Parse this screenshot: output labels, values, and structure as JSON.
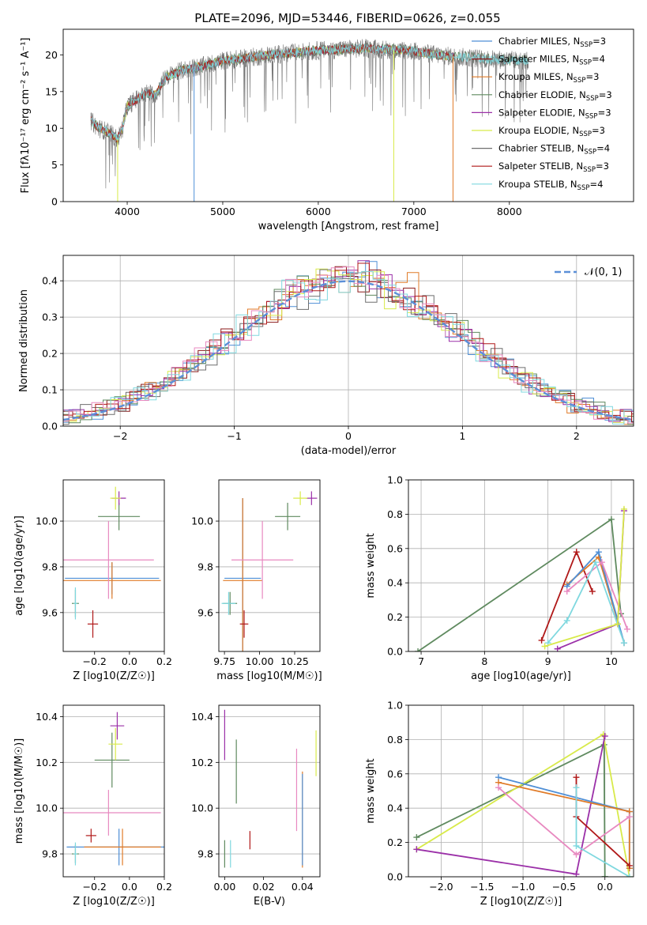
{
  "figure_title": "PLATE=2096, MJD=53446, FIBERID=0626, z=0.055",
  "colors": {
    "Chabrier MILES": "#4f8fd6",
    "Salpeter MILES": "#8b1a1a",
    "Kroupa MILES": "#e07b28",
    "Chabrier ELODIE": "#5f8a5f",
    "Salpeter ELODIE": "#9b30a8",
    "Kroupa ELODIE": "#d8ea4a",
    "Chabrier STELIB": "#6f6f6f",
    "Salpeter STELIB": "#b01818",
    "Kroupa STELIB": "#7fd8df",
    "pink": "#e889c0",
    "gauss": "#5b8fd8"
  },
  "chart_data": [
    {
      "type": "line",
      "panel": "spectrum",
      "title": "PLATE=2096, MJD=53446, FIBERID=0626, z=0.055",
      "xlabel": "wavelength [Angstrom, rest frame]",
      "ylabel": "Flux [fλ10⁻¹⁷ erg cm⁻² s⁻¹ A⁻¹]",
      "xlim": [
        3330,
        9300
      ],
      "ylim": [
        0,
        23.5
      ],
      "xticks": [
        4000,
        5000,
        6000,
        7000,
        8000
      ],
      "yticks": [
        0,
        5,
        10,
        15,
        20
      ],
      "legend_position": "top-right",
      "legend": [
        {
          "label": "Chabrier MILES, N_SSP=3",
          "color": "#4f8fd6"
        },
        {
          "label": "Salpeter MILES, N_SSP=4",
          "color": "#8b1a1a"
        },
        {
          "label": "Kroupa MILES, N_SSP=3",
          "color": "#e07b28"
        },
        {
          "label": "Chabrier ELODIE, N_SSP=3",
          "color": "#5f8a5f"
        },
        {
          "label": "Salpeter ELODIE, N_SSP=3",
          "color": "#9b30a8"
        },
        {
          "label": "Kroupa ELODIE, N_SSP=3",
          "color": "#d8ea4a"
        },
        {
          "label": "Chabrier STELIB, N_SSP=4",
          "color": "#6f6f6f"
        },
        {
          "label": "Salpeter STELIB, N_SSP=3",
          "color": "#b01818"
        },
        {
          "label": "Kroupa STELIB, N_SSP=4",
          "color": "#7fd8df"
        }
      ],
      "continuum": {
        "x": [
          3620,
          3700,
          3800,
          3900,
          3950,
          4000,
          4100,
          4200,
          4300,
          4400,
          4500,
          4600,
          4800,
          5000,
          5200,
          5500,
          6000,
          6500,
          7000,
          7200,
          7400,
          7600,
          7800,
          8000,
          8200
        ],
        "y": [
          11,
          10,
          9.5,
          8.5,
          10,
          13,
          14,
          14.8,
          14.6,
          17,
          17.5,
          18,
          18.5,
          19.2,
          19.5,
          20,
          20.6,
          20.9,
          20.5,
          20.1,
          19.8,
          19.6,
          19.4,
          19.3,
          19.2
        ]
      }
    },
    {
      "type": "histogram",
      "panel": "residuals",
      "xlabel": "(data-model)/error",
      "ylabel": "Normed distribution",
      "xlim": [
        -2.5,
        2.5
      ],
      "ylim": [
        0,
        0.47
      ],
      "xticks": [
        -2,
        -1,
        0,
        1,
        2
      ],
      "yticks": [
        0.0,
        0.1,
        0.2,
        0.3,
        0.4
      ],
      "bin_width": 0.1,
      "reference_curve": {
        "label": "𝒩(0, 1)",
        "mean": 0,
        "sigma": 1
      },
      "grid": true
    },
    {
      "type": "scatter",
      "panel": "age-vs-Z",
      "xlabel": "Z [log10(Z/Z☉)]",
      "ylabel": "age  [log10(age/yr)]",
      "xlim": [
        -0.38,
        0.2
      ],
      "ylim": [
        9.43,
        10.18
      ],
      "xticks": [
        -0.2,
        0.0,
        0.2
      ],
      "yticks": [
        9.6,
        9.8,
        10.0
      ],
      "points": [
        {
          "color": "#4f8fd6",
          "x": -0.1,
          "y": 9.75,
          "xerr": 0.27,
          "yerr": 0.07
        },
        {
          "color": "#e07b28",
          "x": -0.1,
          "y": 9.74,
          "xerr": 0.28,
          "yerr": 0.08
        },
        {
          "color": "#5f8a5f",
          "x": -0.06,
          "y": 10.02,
          "xerr": 0.12,
          "yerr": 0.06
        },
        {
          "color": "#9b30a8",
          "x": -0.06,
          "y": 10.1,
          "xerr": 0.04,
          "yerr": 0.03
        },
        {
          "color": "#d8ea4a",
          "x": -0.08,
          "y": 10.1,
          "xerr": 0.03,
          "yerr": 0.05
        },
        {
          "color": "#e889c0",
          "x": -0.12,
          "y": 9.83,
          "xerr": 0.26,
          "yerr": 0.17
        },
        {
          "color": "#b01818",
          "x": -0.21,
          "y": 9.55,
          "xerr": 0.03,
          "yerr": 0.06
        },
        {
          "color": "#5f8a5f",
          "x": -0.31,
          "y": 9.64,
          "xerr": 0.02,
          "yerr": 0.06
        },
        {
          "color": "#7fd8df",
          "x": -0.31,
          "y": 9.64,
          "xerr": 0.01,
          "yerr": 0.07
        }
      ]
    },
    {
      "type": "scatter",
      "panel": "age-vs-mass",
      "xlabel": "mass [log10(M/M☉)]",
      "ylabel": "",
      "xlim": [
        9.71,
        10.43
      ],
      "ylim": [
        9.43,
        10.18
      ],
      "xticks": [
        9.75,
        10.0,
        10.25
      ],
      "yticks": [
        9.6,
        9.8,
        10.0
      ],
      "points": [
        {
          "color": "#4f8fd6",
          "x": 9.88,
          "y": 9.75,
          "xerr": 0.13,
          "yerr": 0.35
        },
        {
          "color": "#e07b28",
          "x": 9.88,
          "y": 9.74,
          "xerr": 0.14,
          "yerr": 0.36
        },
        {
          "color": "#5f8a5f",
          "x": 10.2,
          "y": 10.02,
          "xerr": 0.09,
          "yerr": 0.06
        },
        {
          "color": "#9b30a8",
          "x": 10.37,
          "y": 10.1,
          "xerr": 0.04,
          "yerr": 0.03
        },
        {
          "color": "#d8ea4a",
          "x": 10.29,
          "y": 10.1,
          "xerr": 0.05,
          "yerr": 0.03
        },
        {
          "color": "#e889c0",
          "x": 10.02,
          "y": 9.83,
          "xerr": 0.22,
          "yerr": 0.17
        },
        {
          "color": "#b01818",
          "x": 9.89,
          "y": 9.55,
          "xerr": 0.03,
          "yerr": 0.06
        },
        {
          "color": "#5f8a5f",
          "x": 9.79,
          "y": 9.64,
          "xerr": 0.05,
          "yerr": 0.05
        },
        {
          "color": "#7fd8df",
          "x": 9.78,
          "y": 9.64,
          "xerr": 0.05,
          "yerr": 0.05
        }
      ]
    },
    {
      "type": "line",
      "panel": "mass-weight-vs-age",
      "xlabel": "age  [log10(age/yr)]",
      "ylabel": "mass weight",
      "xlim": [
        6.8,
        10.35
      ],
      "ylim": [
        0,
        1
      ],
      "xticks": [
        7,
        8,
        9,
        10
      ],
      "yticks": [
        0.0,
        0.2,
        0.4,
        0.6,
        0.8,
        1.0
      ],
      "grid": true,
      "series": [
        {
          "color": "#5f8a5f",
          "x": [
            6.95,
            10.0,
            10.15
          ],
          "y": [
            0.0,
            0.77,
            0.22
          ]
        },
        {
          "color": "#b01818",
          "x": [
            8.9,
            9.45,
            9.7
          ],
          "y": [
            0.065,
            0.58,
            0.35
          ]
        },
        {
          "color": "#e07b28",
          "x": [
            9.3,
            9.8,
            10.2
          ],
          "y": [
            0.39,
            0.55,
            0.05
          ]
        },
        {
          "color": "#4f8fd6",
          "x": [
            9.3,
            9.8,
            10.2
          ],
          "y": [
            0.38,
            0.58,
            0.05
          ]
        },
        {
          "color": "#e889c0",
          "x": [
            9.3,
            9.85,
            10.25
          ],
          "y": [
            0.35,
            0.52,
            0.13
          ]
        },
        {
          "color": "#7fd8df",
          "x": [
            9.0,
            9.3,
            9.75,
            10.2
          ],
          "y": [
            0.05,
            0.18,
            0.52,
            0.05
          ]
        },
        {
          "color": "#9b30a8",
          "x": [
            9.15,
            10.1,
            10.2
          ],
          "y": [
            0.015,
            0.16,
            0.82
          ]
        },
        {
          "color": "#d8ea4a",
          "x": [
            8.95,
            10.1,
            10.2
          ],
          "y": [
            0.03,
            0.16,
            0.83
          ]
        }
      ]
    },
    {
      "type": "scatter",
      "panel": "mass-vs-Z",
      "xlabel": "Z [log10(Z/Z☉)]",
      "ylabel": "mass [log10(M/M☉)]",
      "xlim": [
        -0.38,
        0.2
      ],
      "ylim": [
        9.7,
        10.45
      ],
      "xticks": [
        -0.2,
        0.0,
        0.2
      ],
      "yticks": [
        9.8,
        10.0,
        10.2,
        10.4
      ],
      "points": [
        {
          "color": "#4f8fd6",
          "x": -0.06,
          "y": 9.83,
          "xerr": 0.3,
          "yerr": 0.08
        },
        {
          "color": "#e07b28",
          "x": -0.04,
          "y": 9.83,
          "xerr": 0.22,
          "yerr": 0.08
        },
        {
          "color": "#5f8a5f",
          "x": -0.1,
          "y": 10.21,
          "xerr": 0.1,
          "yerr": 0.12
        },
        {
          "color": "#9b30a8",
          "x": -0.07,
          "y": 10.36,
          "xerr": 0.04,
          "yerr": 0.06
        },
        {
          "color": "#d8ea4a",
          "x": -0.08,
          "y": 10.28,
          "xerr": 0.04,
          "yerr": 0.07
        },
        {
          "color": "#e889c0",
          "x": -0.12,
          "y": 9.98,
          "xerr": 0.3,
          "yerr": 0.1
        },
        {
          "color": "#b01818",
          "x": -0.22,
          "y": 9.88,
          "xerr": 0.03,
          "yerr": 0.03
        },
        {
          "color": "#5f8a5f",
          "x": -0.31,
          "y": 9.8,
          "xerr": 0.02,
          "yerr": 0.04
        },
        {
          "color": "#7fd8df",
          "x": -0.31,
          "y": 9.8,
          "xerr": 0.01,
          "yerr": 0.05
        }
      ]
    },
    {
      "type": "scatter",
      "panel": "mass-vs-EBV",
      "xlabel": "E(B-V)",
      "ylabel": "",
      "xlim": [
        -0.003,
        0.049
      ],
      "ylim": [
        9.7,
        10.45
      ],
      "xticks": [
        0.0,
        0.02,
        0.04
      ],
      "yticks": [
        9.8,
        10.0,
        10.2,
        10.4
      ],
      "points": [
        {
          "color": "#9b30a8",
          "x": 0.0,
          "y": 10.32,
          "yerr": 0.11
        },
        {
          "color": "#5f8a5f",
          "x": 0.006,
          "y": 10.16,
          "yerr": 0.14
        },
        {
          "color": "#5f8a5f",
          "x": 0.0,
          "y": 9.8,
          "yerr": 0.06
        },
        {
          "color": "#7fd8df",
          "x": 0.003,
          "y": 9.8,
          "yerr": 0.06
        },
        {
          "color": "#b01818",
          "x": 0.013,
          "y": 9.86,
          "yerr": 0.04
        },
        {
          "color": "#e889c0",
          "x": 0.037,
          "y": 10.08,
          "yerr": 0.18
        },
        {
          "color": "#e07b28",
          "x": 0.04,
          "y": 9.95,
          "yerr": 0.21
        },
        {
          "color": "#4f8fd6",
          "x": 0.04,
          "y": 9.95,
          "yerr": 0.2
        },
        {
          "color": "#d8ea4a",
          "x": 0.047,
          "y": 10.24,
          "yerr": 0.1
        }
      ]
    },
    {
      "type": "line",
      "panel": "mass-weight-vs-Z",
      "xlabel": "Z [log10(Z/Z☉)]",
      "ylabel": "mass weight",
      "xlim": [
        -2.4,
        0.35
      ],
      "ylim": [
        0,
        1
      ],
      "xticks": [
        -2.0,
        -1.5,
        -1.0,
        -0.5,
        0.0
      ],
      "yticks": [
        0.0,
        0.2,
        0.4,
        0.6,
        0.8,
        1.0
      ],
      "grid": true,
      "series": [
        {
          "color": "#5f8a5f",
          "x": [
            -2.3,
            -0.01,
            0.0,
            0.0
          ],
          "y": [
            0.23,
            0.77,
            0.0,
            0.0
          ]
        },
        {
          "color": "#d8ea4a",
          "x": [
            -2.3,
            -0.02,
            0.3
          ],
          "y": [
            0.16,
            0.83,
            0.0
          ]
        },
        {
          "color": "#9b30a8",
          "x": [
            -2.3,
            -0.35,
            0.0
          ],
          "y": [
            0.16,
            0.015,
            0.82
          ]
        },
        {
          "color": "#4f8fd6",
          "x": [
            -1.3,
            0.3,
            0.3
          ],
          "y": [
            0.58,
            0.38,
            0.05
          ]
        },
        {
          "color": "#e07b28",
          "x": [
            -1.3,
            0.3,
            0.3
          ],
          "y": [
            0.55,
            0.38,
            0.05
          ]
        },
        {
          "color": "#e889c0",
          "x": [
            -1.3,
            -0.35,
            0.3
          ],
          "y": [
            0.52,
            0.13,
            0.35
          ]
        },
        {
          "color": "#b01818",
          "x": [
            -0.35,
            -0.35,
            0.3
          ],
          "y": [
            0.58,
            0.35,
            0.065
          ]
        },
        {
          "color": "#7fd8df",
          "x": [
            -0.35,
            -0.35,
            0.3
          ],
          "y": [
            0.52,
            0.18,
            0.0
          ]
        }
      ]
    }
  ]
}
